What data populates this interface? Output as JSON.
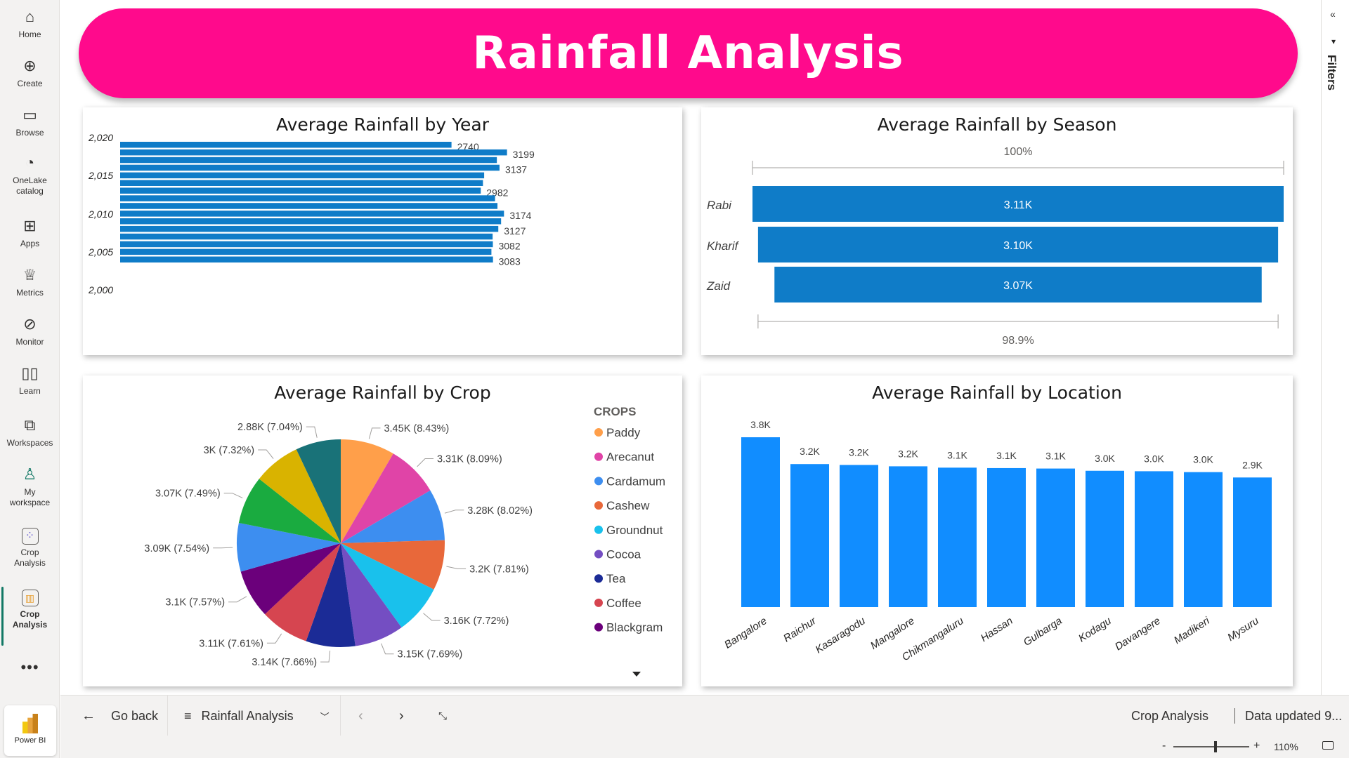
{
  "nav": {
    "items": [
      {
        "label": "Home",
        "icon": "home-icon"
      },
      {
        "label": "Create",
        "icon": "create-icon"
      },
      {
        "label": "Browse",
        "icon": "browse-icon"
      },
      {
        "label": "OneLake catalog",
        "icon": "onelake-icon"
      },
      {
        "label": "Apps",
        "icon": "apps-icon"
      },
      {
        "label": "Metrics",
        "icon": "trophy-icon"
      },
      {
        "label": "Monitor",
        "icon": "monitor-icon"
      },
      {
        "label": "Learn",
        "icon": "book-icon"
      },
      {
        "label": "Workspaces",
        "icon": "workspaces-icon"
      },
      {
        "label": "My workspace",
        "icon": "person-icon"
      },
      {
        "label": "Crop Analysis",
        "icon": "workspace-grid-icon"
      },
      {
        "label": "Crop Analysis",
        "icon": "report-icon"
      }
    ],
    "more": "•••",
    "powerbi_label": "Power BI"
  },
  "filters": {
    "label": "Filters"
  },
  "banner": {
    "title": "Rainfall Analysis"
  },
  "colors": {
    "banner": "#ff0a8c",
    "bar_blue": "#0f7cc8",
    "location_blue": "#118dff",
    "active_accent": "#117865"
  },
  "cards": {
    "year": {
      "title": "Average Rainfall by Year"
    },
    "season": {
      "title": "Average Rainfall by Season"
    },
    "crop": {
      "title": "Average Rainfall by Crop"
    },
    "location": {
      "title": "Average Rainfall by Location"
    }
  },
  "chart_data": [
    {
      "type": "bar",
      "orientation": "horizontal",
      "title": "Average Rainfall by Year",
      "y_tick_labels": [
        "2,020",
        "2,015",
        "2,010",
        "2,005",
        "2,000"
      ],
      "years": [
        2020,
        2019,
        2018,
        2017,
        2016,
        2015,
        2014,
        2013,
        2012,
        2011,
        2010,
        2009,
        2008,
        2007,
        2006,
        2005
      ],
      "values": [
        2740,
        3199,
        3115,
        3137,
        3010,
        3000,
        2982,
        3100,
        3120,
        3174,
        3150,
        3127,
        3080,
        3082,
        3070,
        3083
      ],
      "data_labels": {
        "2020": "2740",
        "2019": "3199",
        "2017": "3137",
        "2014": "2982",
        "2011": "3174",
        "2009": "3127",
        "2007": "3082",
        "2005": "3083"
      },
      "xlim": [
        0,
        3400
      ]
    },
    {
      "type": "bar",
      "orientation": "horizontal",
      "subtype": "funnel",
      "title": "Average Rainfall by Season",
      "categories": [
        "Rabi",
        "Kharif",
        "Zaid"
      ],
      "values": [
        3110,
        3100,
        3070
      ],
      "data_labels": [
        "3.11K",
        "3.10K",
        "3.07K"
      ],
      "top_percent_label": "100%",
      "bottom_percent_label": "98.9%"
    },
    {
      "type": "pie",
      "title": "Average Rainfall by Crop",
      "legend_title": "CROPS",
      "legend_placement": "right",
      "slices": [
        {
          "name": "Paddy",
          "value": 3450,
          "label": "3.45K (8.43%)",
          "percent": 8.43,
          "color": "#ff9f4a"
        },
        {
          "name": "Arecanut",
          "value": 3310,
          "label": "3.31K (8.09%)",
          "percent": 8.09,
          "color": "#e044a7"
        },
        {
          "name": "Cardamum",
          "value": 3280,
          "label": "3.28K (8.02%)",
          "percent": 8.02,
          "color": "#3d8ef0"
        },
        {
          "name": "Cashew",
          "value": 3200,
          "label": "3.2K (7.81%)",
          "percent": 7.81,
          "color": "#e8683a"
        },
        {
          "name": "Groundnut",
          "value": 3160,
          "label": "3.16K (7.72%)",
          "percent": 7.72,
          "color": "#19c1ec"
        },
        {
          "name": "Cocoa",
          "value": 3150,
          "label": "3.15K (7.69%)",
          "percent": 7.69,
          "color": "#744ec2"
        },
        {
          "name": "Tea",
          "value": 3140,
          "label": "3.14K (7.66%)",
          "percent": 7.66,
          "color": "#1b2b96"
        },
        {
          "name": "Coffee",
          "value": 3110,
          "label": "3.11K (7.61%)",
          "percent": 7.61,
          "color": "#d64550"
        },
        {
          "name": "Blackgram",
          "value": 3100,
          "label": "3.1K (7.57%)",
          "percent": 7.57,
          "color": "#6b007b"
        },
        {
          "name": "",
          "value": 3090,
          "label": "3.09K (7.54%)",
          "percent": 7.54,
          "color": "#3d8ef0"
        },
        {
          "name": "",
          "value": 3070,
          "label": "3.07K (7.49%)",
          "percent": 7.49,
          "color": "#1aab40"
        },
        {
          "name": "",
          "value": 3000,
          "label": "3K (7.32%)",
          "percent": 7.32,
          "color": "#d9b300"
        },
        {
          "name": "",
          "value": 2880,
          "label": "2.88K (7.04%)",
          "percent": 7.04,
          "color": "#197278"
        }
      ]
    },
    {
      "type": "bar",
      "orientation": "vertical",
      "title": "Average Rainfall by Location",
      "categories": [
        "Bangalore",
        "Raichur",
        "Kasaragodu",
        "Mangalore",
        "Chikmangaluru",
        "Hassan",
        "Gulbarga",
        "Kodagu",
        "Davangere",
        "Madikeri",
        "Mysuru"
      ],
      "values": [
        3800,
        3200,
        3180,
        3150,
        3120,
        3110,
        3100,
        3050,
        3040,
        3020,
        2900
      ],
      "data_labels": [
        "3.8K",
        "3.2K",
        "3.2K",
        "3.2K",
        "3.1K",
        "3.1K",
        "3.1K",
        "3.0K",
        "3.0K",
        "3.0K",
        "2.9K"
      ],
      "ylim": [
        0,
        3800
      ]
    }
  ],
  "bottombar": {
    "go_back": "Go back",
    "page_name": "Rainfall Analysis",
    "report_name": "Crop Analysis",
    "data_updated": "Data updated 9..."
  },
  "status": {
    "zoom": "110%",
    "zoom_minus": "-",
    "zoom_plus": "+"
  }
}
